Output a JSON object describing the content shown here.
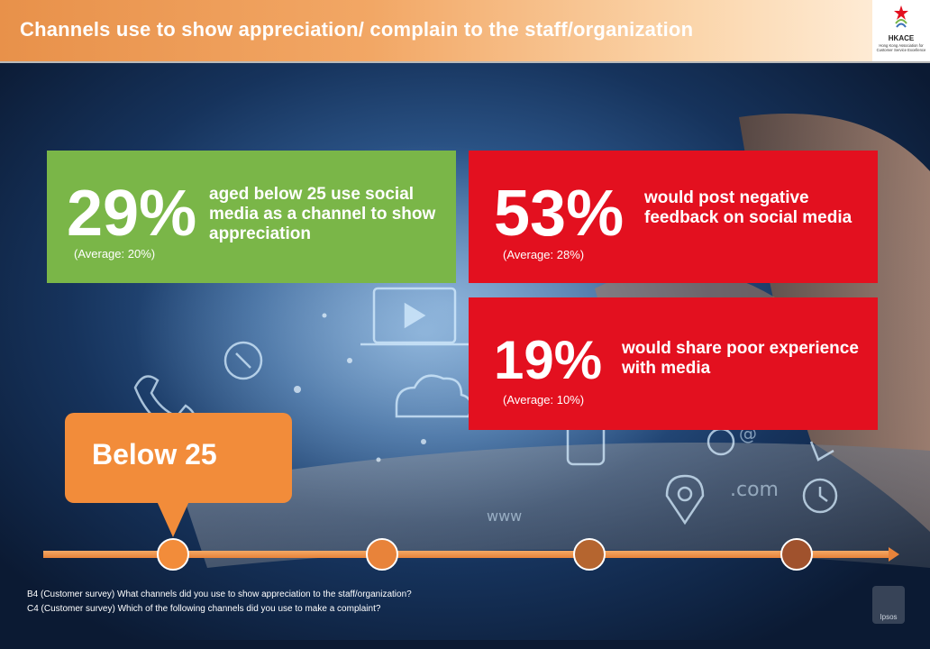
{
  "header": {
    "title": "Channels use to show appreciation/ complain to the staff/organization",
    "logo_abbr": "HKACE",
    "logo_subtitle": "Hong Kong Association for Customer Service Excellence"
  },
  "stats": [
    {
      "percent": "29%",
      "description": "aged below 25 use social media as a channel to show appreciation",
      "average": "(Average: 20%)",
      "color": "#7ab648"
    },
    {
      "percent": "53%",
      "description": "would post negative feedback on social media",
      "average": "(Average: 28%)",
      "color": "#e3101f"
    },
    {
      "percent": "19%",
      "description": "would share poor experience with media",
      "average": "(Average: 10%)",
      "color": "#e3101f"
    }
  ],
  "callout": {
    "label": "Below 25",
    "color": "#f28c3a"
  },
  "timeline": {
    "active_index": 0,
    "points": 4,
    "active_color": "#f28c3a",
    "inactive_color": "#a0522d"
  },
  "footnotes": {
    "b4": "B4 (Customer survey)  What channels did you use to show appreciation to the staff/organization?",
    "c4": "C4  (Customer survey) Which of the following channels did you use to make a complaint?"
  },
  "watermark": {
    "brand": "Ipsos"
  }
}
